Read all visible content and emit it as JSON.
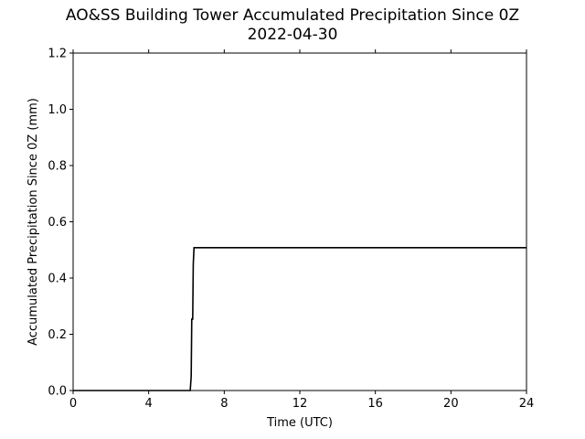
{
  "chart_data": {
    "type": "line",
    "title": "AO&SS Building Tower Accumulated Precipitation Since 0Z",
    "subtitle": "2022-04-30",
    "xlabel": "Time (UTC)",
    "ylabel": "Accumulated Precipitation Since 0Z (mm)",
    "xlim": [
      0,
      24
    ],
    "ylim": [
      0,
      1.2
    ],
    "xticks": [
      "0",
      "4",
      "8",
      "12",
      "16",
      "20",
      "24"
    ],
    "yticks": [
      "0.0",
      "0.2",
      "0.4",
      "0.6",
      "0.8",
      "1.0",
      "1.2"
    ],
    "grid": false,
    "line_color": "#000000",
    "series": [
      {
        "x": [
          0,
          6.2,
          6.25,
          6.28,
          6.33,
          6.36,
          6.4,
          24
        ],
        "y": [
          0,
          0,
          0.05,
          0.254,
          0.254,
          0.45,
          0.508,
          0.508
        ]
      }
    ]
  }
}
